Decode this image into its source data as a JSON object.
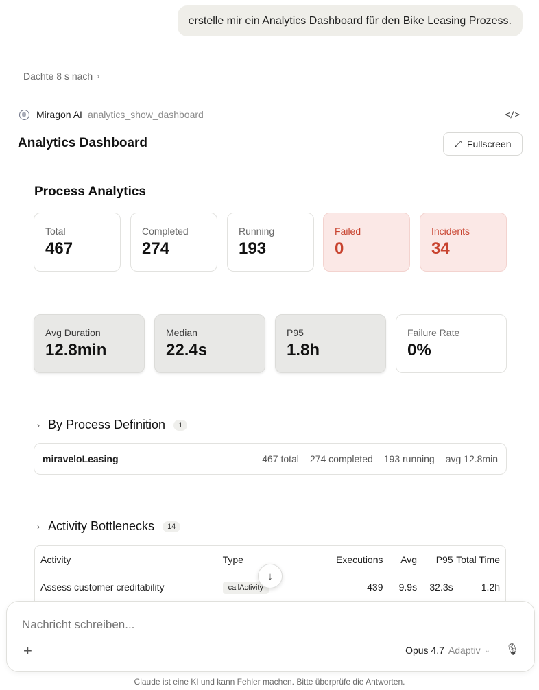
{
  "user_message": "erstelle mir ein Analytics Dashboard für den Bike Leasing Prozess.",
  "thought_label": "Dachte 8 s nach",
  "tool": {
    "name": "Miragon AI",
    "function": "analytics_show_dashboard"
  },
  "dashboard": {
    "title": "Analytics Dashboard",
    "fullscreen_label": "Fullscreen",
    "panel_title": "Process Analytics",
    "counts": [
      {
        "label": "Total",
        "value": "467",
        "style": "plain"
      },
      {
        "label": "Completed",
        "value": "274",
        "style": "plain"
      },
      {
        "label": "Running",
        "value": "193",
        "style": "plain"
      },
      {
        "label": "Failed",
        "value": "0",
        "style": "red"
      },
      {
        "label": "Incidents",
        "value": "34",
        "style": "red"
      }
    ],
    "durations": [
      {
        "label": "Avg Duration",
        "value": "12.8min",
        "style": "grey"
      },
      {
        "label": "Median",
        "value": "22.4s",
        "style": "grey"
      },
      {
        "label": "P95",
        "value": "1.8h",
        "style": "grey"
      },
      {
        "label": "Failure Rate",
        "value": "0%",
        "style": "plain"
      }
    ],
    "by_process": {
      "title": "By Process Definition",
      "count": "1",
      "rows": [
        {
          "name": "miraveloLeasing",
          "total": "467 total",
          "completed": "274 completed",
          "running": "193 running",
          "avg": "avg 12.8min"
        }
      ]
    },
    "bottlenecks": {
      "title": "Activity Bottlenecks",
      "count": "14",
      "columns": [
        "Activity",
        "Type",
        "Executions",
        "Avg",
        "P95",
        "Total Time"
      ],
      "rows": [
        {
          "activity": "Assess customer creditability",
          "type": "callActivity",
          "executions": "439",
          "avg": "9.9s",
          "p95": "32.3s",
          "total": "1.2h"
        }
      ]
    }
  },
  "composer": {
    "placeholder": "Nachricht schreiben...",
    "model": "Opus 4.7",
    "mode": "Adaptiv"
  },
  "disclaimer": "Claude ist eine KI und kann Fehler machen. Bitte überprüfe die Antworten."
}
